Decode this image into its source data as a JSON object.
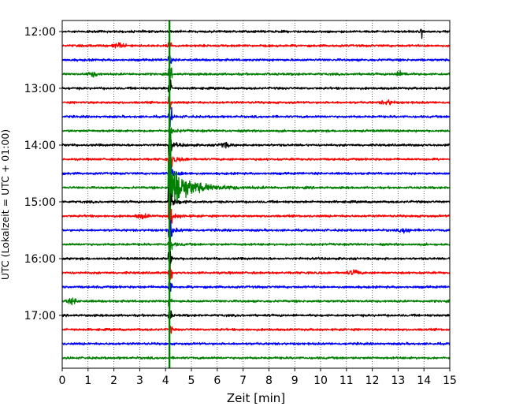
{
  "chart_data": {
    "type": "line",
    "title": "",
    "xlabel": "Zeit  [min]",
    "ylabel": "UTC (Lokalzeit = UTC + 01:00)",
    "xlim": [
      0,
      15
    ],
    "x_ticks": [
      "0",
      "1",
      "2",
      "3",
      "4",
      "5",
      "6",
      "7",
      "8",
      "9",
      "10",
      "11",
      "12",
      "13",
      "14",
      "15"
    ],
    "y_ticks": [
      "12:00",
      "13:00",
      "14:00",
      "15:00",
      "16:00",
      "17:00"
    ],
    "grid": "vertical dotted at each minute",
    "trace_interval_min": 15,
    "first_trace_utc": "12:00",
    "trace_count": 24,
    "color_cycle": [
      "#000000",
      "#ff0000",
      "#0000ff",
      "#008000"
    ],
    "event": {
      "onset_min": 4.15,
      "strongest_trace_utc": "14:45",
      "description": "earthquake signal"
    },
    "spike": {
      "trace_utc": "12:00",
      "x_min": 13.9
    },
    "minor_bursts": [
      {
        "trace_utc": "12:15",
        "x_min": 2.2
      },
      {
        "trace_utc": "12:45",
        "x_min": 1.2
      },
      {
        "trace_utc": "12:45",
        "x_min": 13.1
      },
      {
        "trace_utc": "13:15",
        "x_min": 12.6
      },
      {
        "trace_utc": "14:00",
        "x_min": 6.3
      },
      {
        "trace_utc": "15:15",
        "x_min": 3.1
      },
      {
        "trace_utc": "15:30",
        "x_min": 13.3
      },
      {
        "trace_utc": "16:15",
        "x_min": 11.3
      },
      {
        "trace_utc": "16:45",
        "x_min": 0.4
      }
    ]
  }
}
